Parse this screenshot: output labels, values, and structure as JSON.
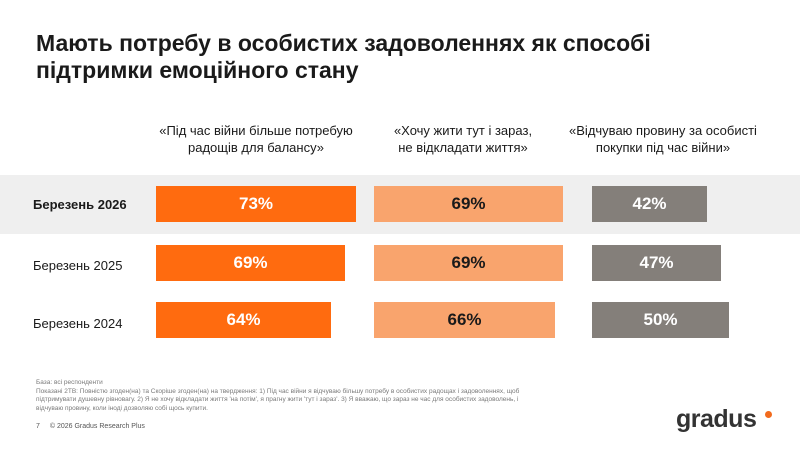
{
  "title_line1": "Мають потребу в особистих задоволеннях як способі",
  "title_line2": "підтримки емоційного стану",
  "colors": {
    "col1": "#ff6b0f",
    "col2": "#f9a46d",
    "col3": "#847f7a",
    "band": "#efefef"
  },
  "chart_data": {
    "type": "bar",
    "orientation": "horizontal",
    "title": "Мають потребу в особистих задоволеннях як способі підтримки емоційного стану",
    "categories": [
      "Березень 2026",
      "Березень 2025",
      "Березень 2024"
    ],
    "unit": "%",
    "series": [
      {
        "name": "«Під час війни більше потребую радощів для балансу»",
        "values": [
          73,
          69,
          64
        ]
      },
      {
        "name": "«Хочу жити тут і зараз, не відкладати життя»",
        "values": [
          69,
          69,
          66
        ]
      },
      {
        "name": "«Відчуваю провину за особисті покупки під час війни»",
        "values": [
          42,
          47,
          50
        ]
      }
    ],
    "ylim": [
      0,
      100
    ]
  },
  "headers": [
    {
      "line1": "«Під час війни більше потребую",
      "line2": "радощів для балансу»"
    },
    {
      "line1": "«Хочу жити тут і зараз,",
      "line2": "не відкладати життя»"
    },
    {
      "line1": "«Відчуваю провину за особисті",
      "line2": "покупки під час війни»"
    }
  ],
  "footnote": {
    "base": "База: всі респонденти",
    "line1": "Показані 2ТВ: Повністю згоден(на) та Скоріше згоден(на) на твердження: 1) Під час війни я відчуваю більшу потребу в особистих радощах і задоволеннях, щоб",
    "line2": "підтримувати душевну рівновагу. 2) Я не хочу відкладати життя 'на потім', я прагну жити 'тут і зараз'. 3) Я вважаю, що зараз не час для особистих задоволень, і",
    "line3": "відчуваю провину, коли іноді дозволяю собі щось купити."
  },
  "page_number": "7",
  "copyright": "© 2026 Gradus Research Plus",
  "logo_text": "gradus"
}
